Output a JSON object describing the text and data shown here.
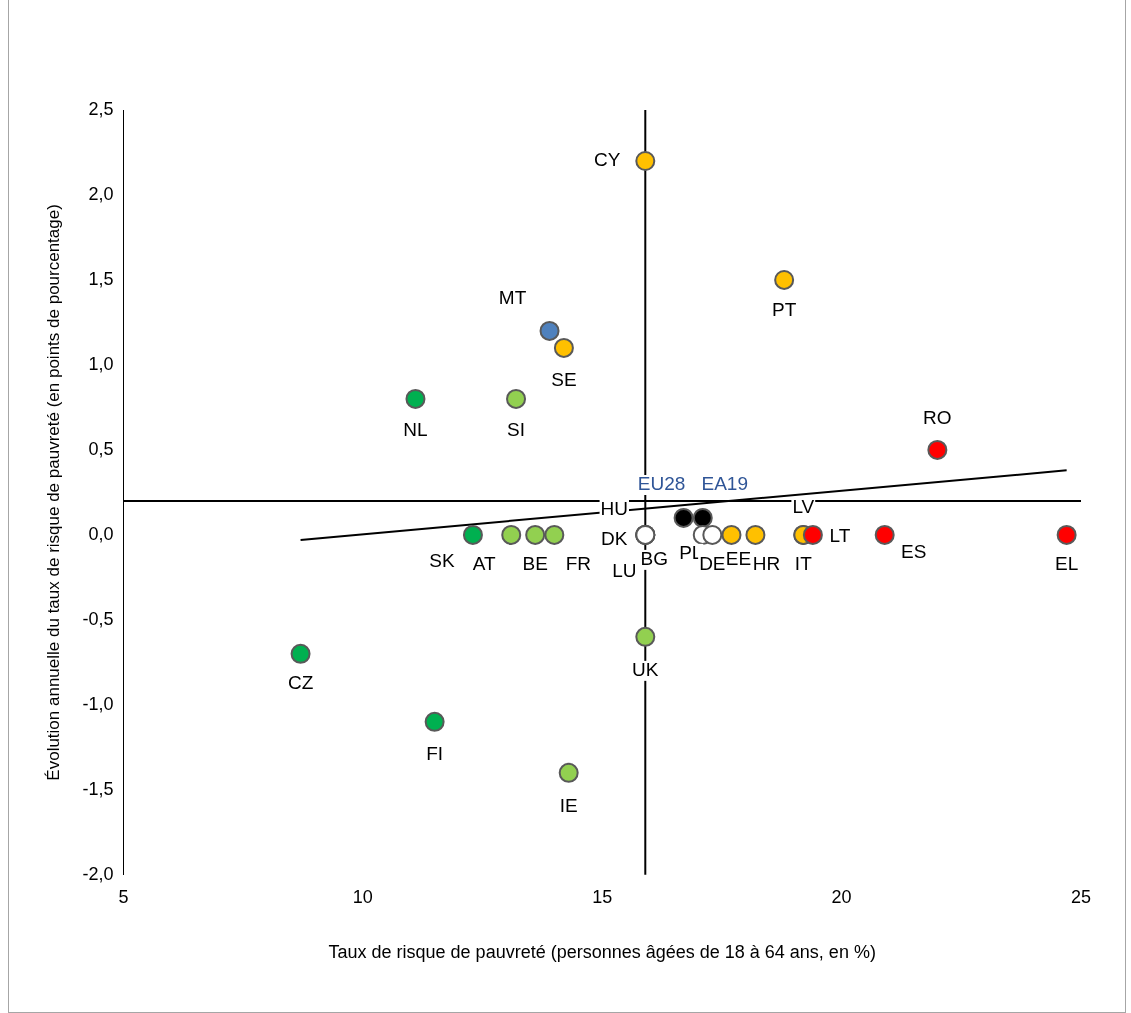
{
  "chart_data": {
    "type": "scatter",
    "xlabel": "Taux de risque de pauvreté (personnes âgées de 18 à 64 ans, en %)",
    "ylabel": "Évolution annuelle du taux de risque de pauvreté (en points de pourcentage)",
    "xlim": [
      5,
      25
    ],
    "xticks": [
      5,
      10,
      15,
      20,
      25
    ],
    "ylim": [
      -2,
      2.5
    ],
    "yticks": [
      {
        "value": -2,
        "label": "-2,0"
      },
      {
        "value": -1.5,
        "label": "-1,5"
      },
      {
        "value": -1,
        "label": "-1,0"
      },
      {
        "value": -0.5,
        "label": "-0,5"
      },
      {
        "value": 0,
        "label": "0,0"
      },
      {
        "value": 0.5,
        "label": "0,5"
      },
      {
        "value": 1,
        "label": "1,0"
      },
      {
        "value": 1.5,
        "label": "1,5"
      },
      {
        "value": 2,
        "label": "2,0"
      },
      {
        "value": 2.5,
        "label": "2,5"
      }
    ],
    "grid": false,
    "legend": false,
    "marker": "circle",
    "series": [
      {
        "x": [
          12.3,
          13.1,
          13.6,
          14.0,
          15.9,
          15.9,
          15.9,
          15.9,
          16.7,
          17.1,
          17.1,
          17.3,
          17.7,
          18.2,
          19.2,
          19.2,
          19.4,
          20.9,
          24.7,
          22.0,
          15.9,
          18.8,
          13.9,
          14.2,
          11.1,
          13.2,
          8.7,
          11.5,
          14.3,
          15.9
        ],
        "values": [
          0,
          0,
          0,
          0,
          0,
          0,
          0,
          0,
          0.1,
          0.1,
          0,
          0,
          0,
          0,
          0,
          0,
          0,
          0,
          0,
          0.5,
          2.2,
          1.5,
          1.2,
          1.1,
          0.8,
          0.8,
          -0.7,
          -1.1,
          -1.4,
          -0.6
        ],
        "colors": [
          "#00b050",
          "#92d050",
          "#92d050",
          "#92d050",
          "#ffffff",
          "#ffffff",
          "#ffffff",
          "#ffffff",
          "#000000",
          "#000000",
          "#ffffff",
          "#ffffff",
          "#ffc000",
          "#ffc000",
          "#ffc000",
          "#ffc000",
          "#ff0000",
          "#ff0000",
          "#ff0000",
          "#ff0000",
          "#ffc000",
          "#ffc000",
          "#4f81bd",
          "#ffc000",
          "#00b050",
          "#92d050",
          "#00b050",
          "#00b050",
          "#92d050",
          "#92d050"
        ]
      },
      {
        "type": "line",
        "color": "#000000",
        "marker": "none",
        "x": [
          8.7,
          24.7
        ],
        "values": [
          -0.03,
          0.38
        ]
      }
    ],
    "ref_lines": [
      {
        "axis": "y",
        "value": 0.2,
        "color": "#000000"
      },
      {
        "axis": "x",
        "value": 15.9,
        "color": "#000000"
      }
    ],
    "annotations": [
      {
        "text": "SK",
        "x": 12.3,
        "y": 0
      },
      {
        "text": "AT",
        "x": 13.1,
        "y": 0
      },
      {
        "text": "BE",
        "x": 13.6,
        "y": 0
      },
      {
        "text": "FR",
        "x": 14.0,
        "y": 0
      },
      {
        "text": "HU",
        "x": 15.9,
        "y": 0
      },
      {
        "text": "DK",
        "x": 15.9,
        "y": 0
      },
      {
        "text": "LU",
        "x": 15.9,
        "y": 0
      },
      {
        "text": "BG",
        "x": 15.9,
        "y": 0
      },
      {
        "text": "EU28",
        "x": 16.7,
        "y": 0.1
      },
      {
        "text": "EA19",
        "x": 17.1,
        "y": 0.1
      },
      {
        "text": "PL",
        "x": 17.1,
        "y": 0
      },
      {
        "text": "DE",
        "x": 17.3,
        "y": 0
      },
      {
        "text": "EE",
        "x": 17.7,
        "y": 0
      },
      {
        "text": "HR",
        "x": 18.2,
        "y": 0
      },
      {
        "text": "LV",
        "x": 19.2,
        "y": 0
      },
      {
        "text": "IT",
        "x": 19.2,
        "y": 0
      },
      {
        "text": "LT",
        "x": 19.4,
        "y": 0
      },
      {
        "text": "ES",
        "x": 20.9,
        "y": 0
      },
      {
        "text": "EL",
        "x": 24.7,
        "y": 0
      },
      {
        "text": "RO",
        "x": 22.0,
        "y": 0.5
      },
      {
        "text": "CY",
        "x": 15.9,
        "y": 2.2
      },
      {
        "text": "PT",
        "x": 18.8,
        "y": 1.5
      },
      {
        "text": "MT",
        "x": 13.9,
        "y": 1.2
      },
      {
        "text": "SE",
        "x": 14.2,
        "y": 1.1
      },
      {
        "text": "NL",
        "x": 11.1,
        "y": 0.8
      },
      {
        "text": "SI",
        "x": 13.2,
        "y": 0.8
      },
      {
        "text": "CZ",
        "x": 8.7,
        "y": -0.7
      },
      {
        "text": "FI",
        "x": 11.5,
        "y": -1.1
      },
      {
        "text": "IE",
        "x": 14.3,
        "y": -1.4
      },
      {
        "text": "UK",
        "x": 15.9,
        "y": -0.6
      }
    ]
  }
}
